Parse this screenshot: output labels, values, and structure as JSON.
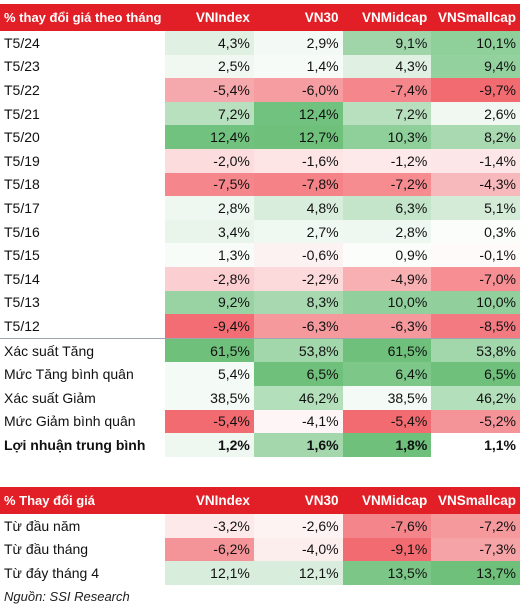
{
  "table1": {
    "headers": [
      "% thay đổi giá theo tháng",
      "VNIndex",
      "VN30",
      "VNMidcap",
      "VNSmallcap"
    ],
    "rows": [
      {
        "label": "T5/24",
        "values": [
          "4,3%",
          "2,9%",
          "9,1%",
          "10,1%"
        ],
        "colors": [
          "#e0f0e3",
          "#f3f9f4",
          "#9fd5a9",
          "#8ecf9a"
        ]
      },
      {
        "label": "T5/23",
        "values": [
          "2,5%",
          "1,4%",
          "4,3%",
          "9,4%"
        ],
        "colors": [
          "#f0f8f1",
          "#f7fbf8",
          "#e0f0e3",
          "#93d19e"
        ]
      },
      {
        "label": "T5/22",
        "values": [
          "-5,4%",
          "-6,0%",
          "-7,4%",
          "-9,7%"
        ],
        "colors": [
          "#f6a9ad",
          "#f59da1",
          "#f5868b",
          "#f26b71"
        ]
      },
      {
        "label": "T5/21",
        "values": [
          "7,2%",
          "12,4%",
          "7,2%",
          "2,6%"
        ],
        "colors": [
          "#b8e0be",
          "#72c27f",
          "#b8e0be",
          "#f0f8f1"
        ]
      },
      {
        "label": "T5/20",
        "values": [
          "12,4%",
          "12,7%",
          "10,3%",
          "8,2%"
        ],
        "colors": [
          "#72c27f",
          "#6ec07b",
          "#8ecf9a",
          "#a8d9b0"
        ]
      },
      {
        "label": "T5/19",
        "values": [
          "-2,0%",
          "-1,6%",
          "-1,2%",
          "-1,4%"
        ],
        "colors": [
          "#fcdcdd",
          "#fde4e5",
          "#fde9ea",
          "#fde6e7"
        ]
      },
      {
        "label": "T5/18",
        "values": [
          "-7,5%",
          "-7,8%",
          "-7,2%",
          "-4,3%"
        ],
        "colors": [
          "#f5868b",
          "#f48287",
          "#f68b90",
          "#f8b9bc"
        ]
      },
      {
        "label": "T5/17",
        "values": [
          "2,8%",
          "4,8%",
          "6,3%",
          "5,1%"
        ],
        "colors": [
          "#eef7f0",
          "#d9eddc",
          "#c4e5c9",
          "#d4ebd8"
        ]
      },
      {
        "label": "T5/16",
        "values": [
          "3,4%",
          "2,7%",
          "2,8%",
          "0,3%"
        ],
        "colors": [
          "#e9f5eb",
          "#eff8f1",
          "#eef7f0",
          "#fbfdfb"
        ]
      },
      {
        "label": "T5/15",
        "values": [
          "1,3%",
          "-0,6%",
          "0,9%",
          "-0,1%"
        ],
        "colors": [
          "#f8fcf9",
          "#fdf2f2",
          "#fafdfa",
          "#fefafa"
        ]
      },
      {
        "label": "T5/14",
        "values": [
          "-2,8%",
          "-2,2%",
          "-4,9%",
          "-7,0%"
        ],
        "colors": [
          "#fbcfd1",
          "#fcd9da",
          "#f8b0b3",
          "#f68e93"
        ]
      },
      {
        "label": "T5/13",
        "values": [
          "9,2%",
          "8,3%",
          "10,0%",
          "10,0%"
        ],
        "colors": [
          "#99d3a4",
          "#a7d8af",
          "#91d09c",
          "#91d09c"
        ]
      },
      {
        "label": "T5/12",
        "values": [
          "-9,4%",
          "-6,3%",
          "-6,3%",
          "-8,5%"
        ],
        "colors": [
          "#f26e74",
          "#f5999d",
          "#f5999d",
          "#f37a80"
        ]
      },
      {
        "label": "Xác suất Tăng",
        "values": [
          "61,5%",
          "53,8%",
          "61,5%",
          "53,8%"
        ],
        "colors": [
          "#6ec07b",
          "#a2d6ab",
          "#6ec07b",
          "#a2d6ab"
        ]
      },
      {
        "label": "Mức Tăng bình quân",
        "values": [
          "5,4%",
          "6,5%",
          "6,4%",
          "6,5%"
        ],
        "colors": [
          "#f4faf5",
          "#6ec07b",
          "#7dc889",
          "#6ec07b"
        ]
      },
      {
        "label": "Xác suất Giảm",
        "values": [
          "38,5%",
          "46,2%",
          "38,5%",
          "46,2%"
        ],
        "colors": [
          "#f4faf5",
          "#b3dfba",
          "#f4faf5",
          "#b3dfba"
        ]
      },
      {
        "label": "Mức Giảm bình quân",
        "values": [
          "-5,4%",
          "-4,1%",
          "-5,4%",
          "-5,2%"
        ],
        "colors": [
          "#f26b71",
          "#fef6f6",
          "#f26b71",
          "#f59498"
        ]
      },
      {
        "label": "Lợi nhuận trung bình",
        "values": [
          "1,2%",
          "1,6%",
          "1,8%",
          "1,1%"
        ],
        "colors": [
          "#eef7f0",
          "#a4d7ac",
          "#6ec07b",
          "#ffffff"
        ]
      }
    ]
  },
  "table2": {
    "headers": [
      "% Thay đổi giá",
      "VNIndex",
      "VN30",
      "VNMidcap",
      "VNSmallcap"
    ],
    "rows": [
      {
        "label": "Từ đầu năm",
        "values": [
          "-3,2%",
          "-2,6%",
          "-7,6%",
          "-7,2%"
        ],
        "colors": [
          "#fde9ea",
          "#fef3f3",
          "#f4858a",
          "#f5999d"
        ]
      },
      {
        "label": "Từ đầu tháng",
        "values": [
          "-6,2%",
          "-4,0%",
          "-9,1%",
          "-7,3%"
        ],
        "colors": [
          "#f59498",
          "#fdeeee",
          "#f26b71",
          "#f6a3a7"
        ]
      },
      {
        "label": "Từ đáy tháng 4",
        "values": [
          "12,1%",
          "12,1%",
          "13,5%",
          "13,7%"
        ],
        "colors": [
          "#d8eddc",
          "#d8eddc",
          "#7cc788",
          "#6ec07b"
        ]
      }
    ]
  },
  "source": "Nguồn: SSI Research"
}
